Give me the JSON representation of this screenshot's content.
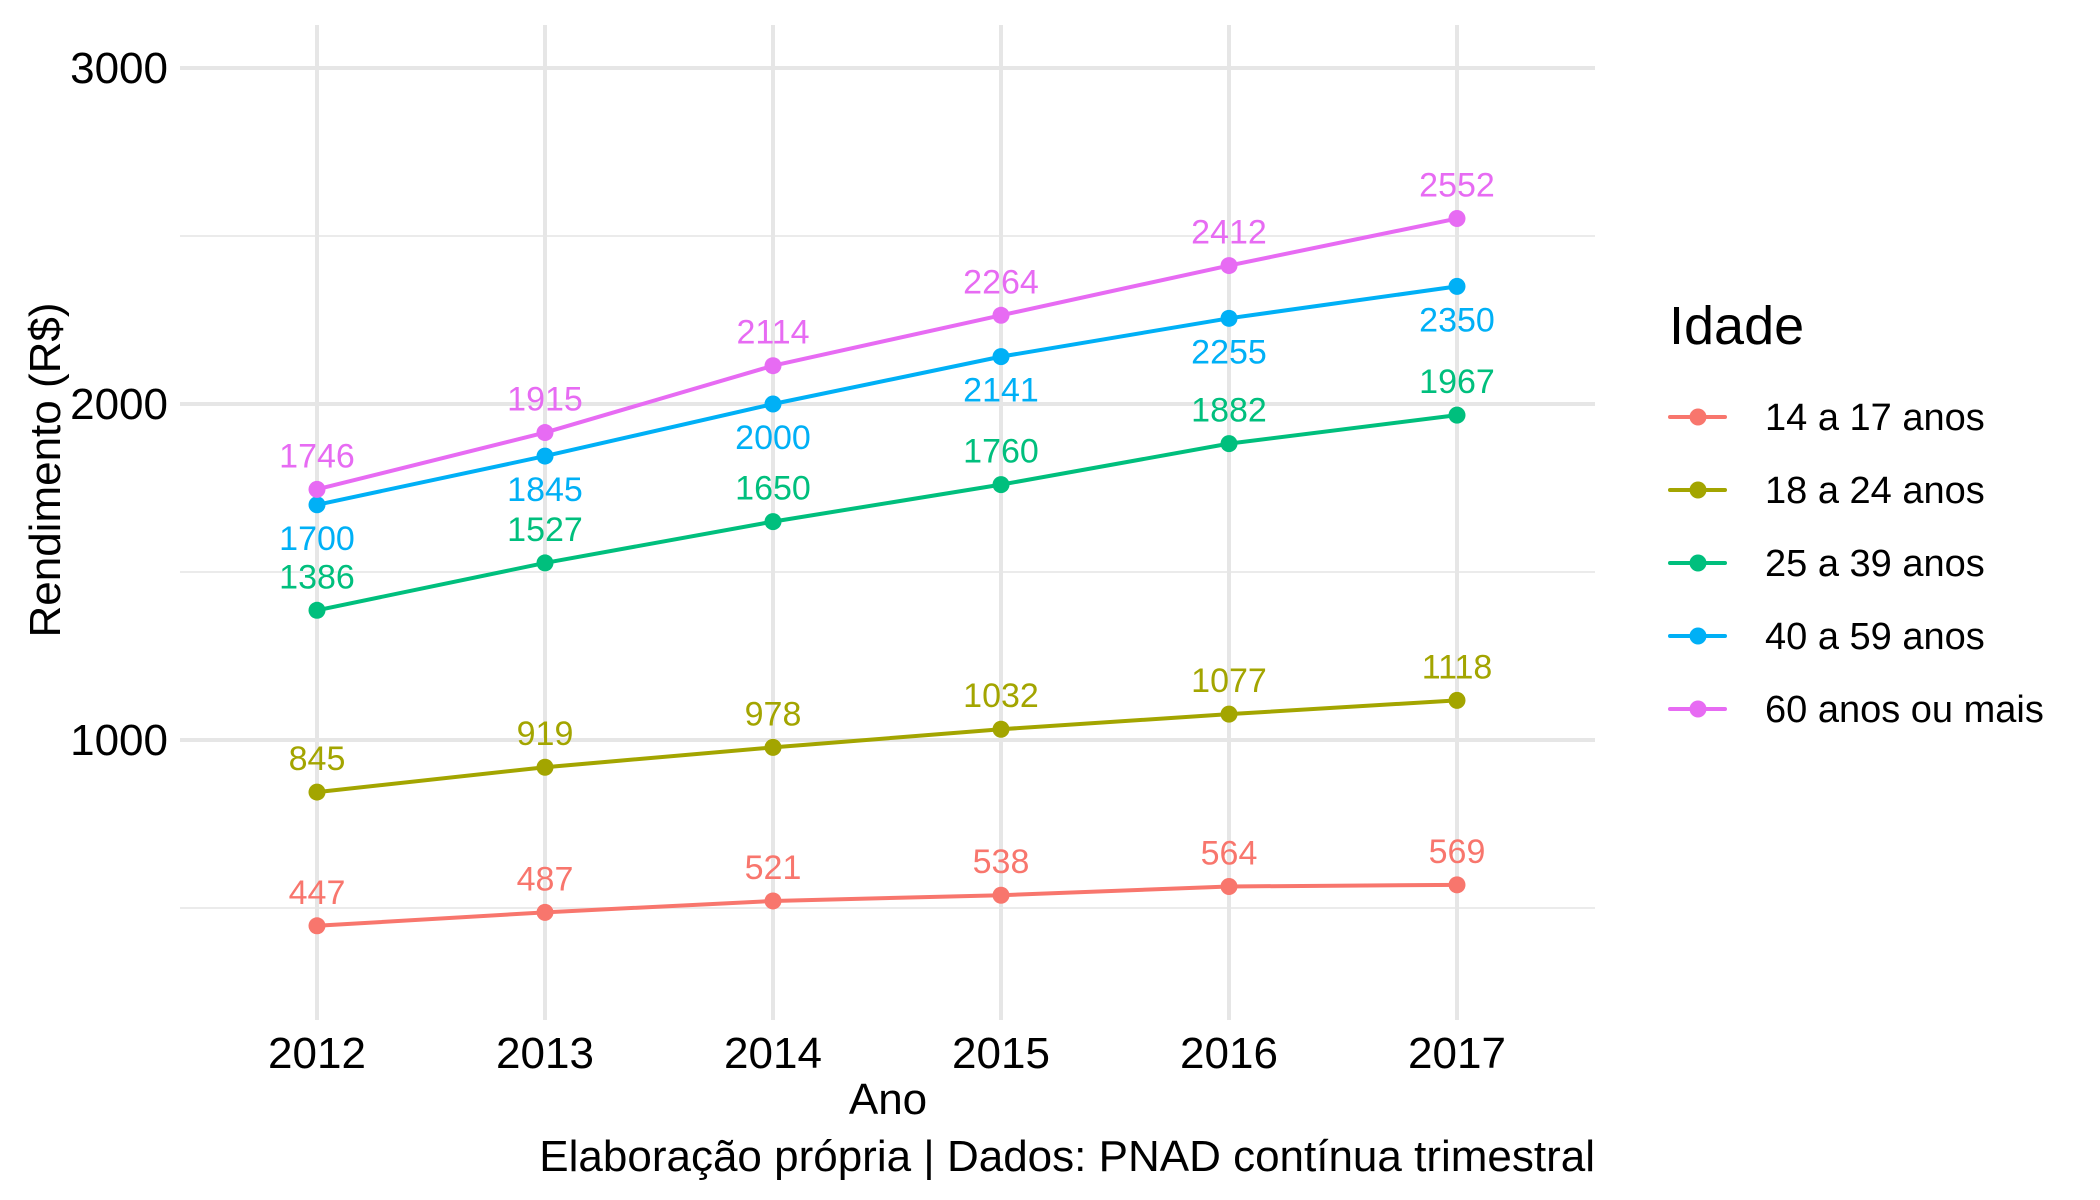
{
  "chart_data": {
    "type": "line",
    "title": "",
    "xlabel": "Ano",
    "ylabel": "Rendimento (R$)",
    "caption": "Elaboração própria | Dados: PNAD contínua trimestral",
    "x": [
      2012,
      2013,
      2014,
      2015,
      2016,
      2017
    ],
    "x_tick_labels": [
      "2012",
      "2013",
      "2014",
      "2015",
      "2016",
      "2017"
    ],
    "y_ticks": [
      1000,
      2000,
      3000
    ],
    "y_tick_labels": [
      "1000",
      "2000",
      "3000"
    ],
    "ylim": [
      250,
      3050
    ],
    "grid": true,
    "legend": {
      "title": "Idade",
      "position": "right"
    },
    "series": [
      {
        "name": "14 a 17 anos",
        "color": "#F8766D",
        "values": [
          447,
          487,
          521,
          538,
          564,
          569
        ],
        "label_position": "above"
      },
      {
        "name": "18 a 24 anos",
        "color": "#A3A500",
        "values": [
          845,
          919,
          978,
          1032,
          1077,
          1118
        ],
        "label_position": "above"
      },
      {
        "name": "25 a 39 anos",
        "color": "#00BF7D",
        "values": [
          1386,
          1527,
          1650,
          1760,
          1882,
          1967
        ],
        "label_position": "above"
      },
      {
        "name": "40 a 59 anos",
        "color": "#00B0F6",
        "values": [
          1700,
          1845,
          2000,
          2141,
          2255,
          2350
        ],
        "label_position": "below"
      },
      {
        "name": "60 anos ou mais",
        "color": "#E76BF3",
        "values": [
          1746,
          1915,
          2114,
          2264,
          2412,
          2552
        ],
        "label_position": "above"
      }
    ]
  }
}
